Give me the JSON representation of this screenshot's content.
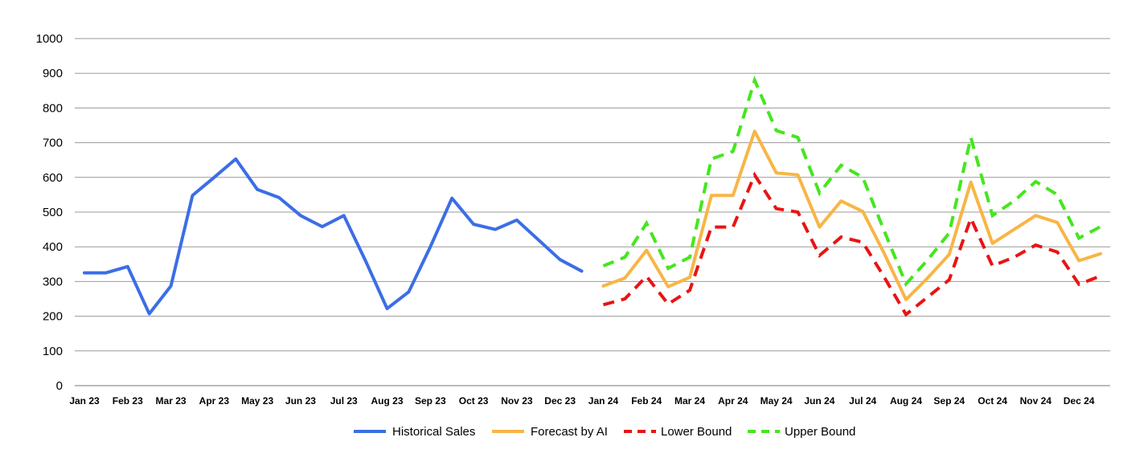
{
  "chart_data": {
    "type": "line",
    "title": "",
    "xlabel": "",
    "ylabel": "",
    "ylim": [
      0,
      1000
    ],
    "yticks": [
      0,
      100,
      200,
      300,
      400,
      500,
      600,
      700,
      800,
      900,
      1000
    ],
    "grid": true,
    "legend_position": "bottom",
    "x": [
      "Jan 23",
      "",
      "Feb 23",
      "",
      "Mar 23",
      "",
      "Apr 23",
      "",
      "May 23",
      "",
      "Jun 23",
      "",
      "Jul 23",
      "",
      "Aug 23",
      "",
      "Sep 23",
      "",
      "Oct 23",
      "",
      "Nov 23",
      "",
      "Dec 23",
      "",
      "Jan 24",
      "",
      "Feb 24",
      "",
      "Mar 24",
      "",
      "Apr 24",
      "",
      "May 24",
      "",
      "Jun 24",
      "",
      "Jul 24",
      "",
      "Aug 24",
      "",
      "Sep 24",
      "",
      "Oct 24",
      "",
      "Nov 24",
      "",
      "Dec 24",
      ""
    ],
    "series": [
      {
        "name": "Historical Sales",
        "color": "#3b6ee6",
        "dash": "solid",
        "values": [
          325,
          325,
          343,
          207,
          287,
          548,
          600,
          653,
          565,
          542,
          490,
          458,
          490,
          360,
          222,
          270,
          400,
          540,
          465,
          450,
          477,
          420,
          363,
          330,
          null,
          null,
          null,
          null,
          null,
          null,
          null,
          null,
          null,
          null,
          null,
          null,
          null,
          null,
          null,
          null,
          null,
          null,
          null,
          null,
          null,
          null,
          null,
          null
        ]
      },
      {
        "name": "Forecast by AI",
        "color": "#f8b546",
        "dash": "solid",
        "values": [
          null,
          null,
          null,
          null,
          null,
          null,
          null,
          null,
          null,
          null,
          null,
          null,
          null,
          null,
          null,
          null,
          null,
          null,
          null,
          null,
          null,
          null,
          null,
          null,
          287,
          310,
          390,
          285,
          312,
          548,
          548,
          733,
          613,
          607,
          457,
          532,
          502,
          380,
          248,
          310,
          378,
          586,
          410,
          450,
          490,
          470,
          360,
          380
        ]
      },
      {
        "name": "Lower Bound",
        "color": "#e81414",
        "dash": "dashed",
        "values": [
          null,
          null,
          null,
          null,
          null,
          null,
          null,
          null,
          null,
          null,
          null,
          null,
          null,
          null,
          null,
          null,
          null,
          null,
          null,
          null,
          null,
          null,
          null,
          null,
          233,
          250,
          315,
          235,
          275,
          457,
          457,
          607,
          510,
          500,
          375,
          428,
          413,
          312,
          205,
          255,
          305,
          482,
          345,
          370,
          405,
          385,
          292,
          316
        ]
      },
      {
        "name": "Upper Bound",
        "color": "#45e61e",
        "dash": "dashed",
        "values": [
          null,
          null,
          null,
          null,
          null,
          null,
          null,
          null,
          null,
          null,
          null,
          null,
          null,
          null,
          null,
          null,
          null,
          null,
          null,
          null,
          null,
          null,
          null,
          null,
          345,
          370,
          468,
          338,
          370,
          653,
          675,
          880,
          735,
          715,
          555,
          635,
          600,
          445,
          293,
          362,
          440,
          715,
          490,
          532,
          588,
          550,
          425,
          458
        ]
      }
    ]
  }
}
